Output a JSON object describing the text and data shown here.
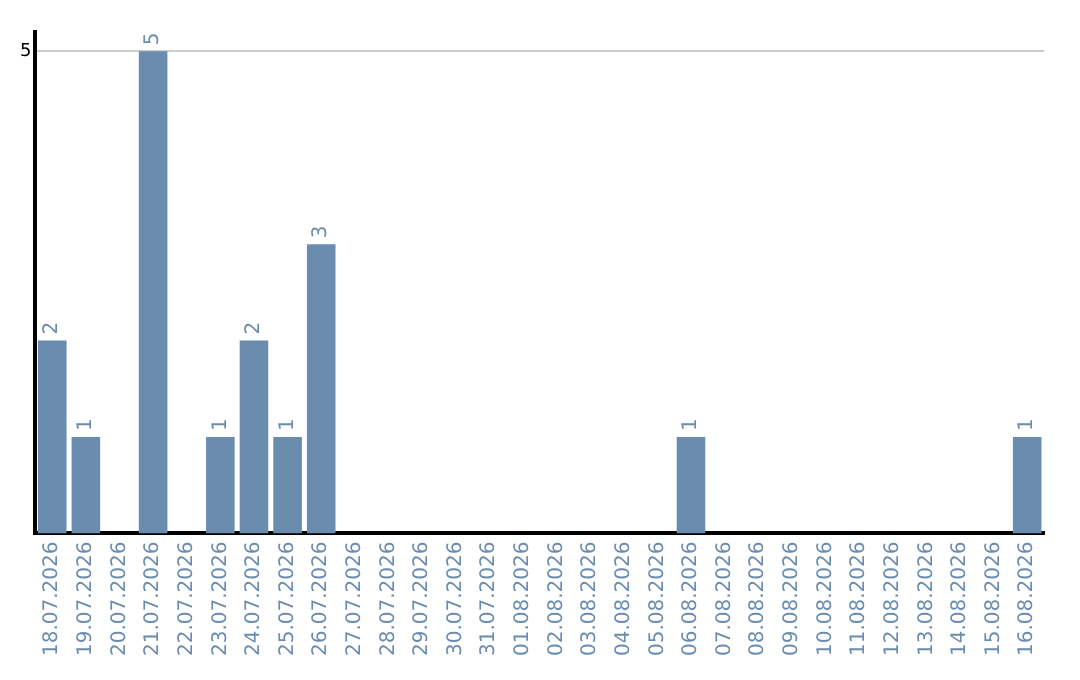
{
  "chart_data": {
    "type": "bar",
    "categories": [
      "18.07.2026",
      "19.07.2026",
      "20.07.2026",
      "21.07.2026",
      "22.07.2026",
      "23.07.2026",
      "24.07.2026",
      "25.07.2026",
      "26.07.2026",
      "27.07.2026",
      "28.07.2026",
      "29.07.2026",
      "30.07.2026",
      "31.07.2026",
      "01.08.2026",
      "02.08.2026",
      "03.08.2026",
      "04.08.2026",
      "05.08.2026",
      "06.08.2026",
      "07.08.2026",
      "08.08.2026",
      "09.08.2026",
      "10.08.2026",
      "11.08.2026",
      "12.08.2026",
      "13.08.2026",
      "14.08.2026",
      "15.08.2026",
      "16.08.2026"
    ],
    "values": [
      2,
      1,
      0,
      5,
      0,
      1,
      2,
      1,
      3,
      0,
      0,
      0,
      0,
      0,
      0,
      0,
      0,
      0,
      0,
      1,
      0,
      0,
      0,
      0,
      0,
      0,
      0,
      0,
      0,
      1
    ],
    "value_labels": [
      "2",
      "1",
      null,
      "5",
      null,
      "1",
      "2",
      "1",
      "3",
      null,
      null,
      null,
      null,
      null,
      null,
      null,
      null,
      null,
      null,
      "1",
      null,
      null,
      null,
      null,
      null,
      null,
      null,
      null,
      null,
      "1"
    ],
    "color": "#6a8caf",
    "ylim": [
      0,
      5.2
    ],
    "yticks": [
      5
    ],
    "grid": "y"
  }
}
